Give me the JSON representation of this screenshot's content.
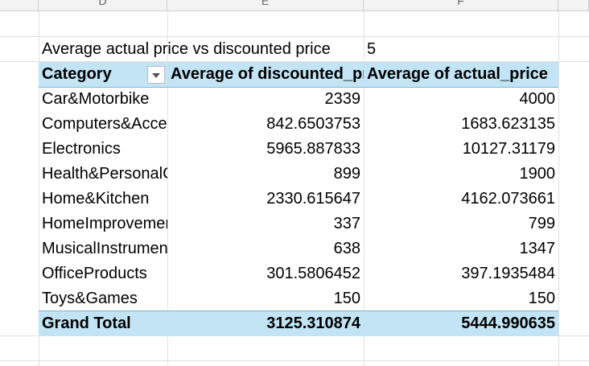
{
  "columns": [
    "D",
    "E",
    "F"
  ],
  "title_cell": {
    "label": "Average actual price vs discounted price",
    "value": "5"
  },
  "pivot": {
    "headers": {
      "category": "Category",
      "discounted": "Average of discounted_price",
      "actual": "Average of actual_price"
    },
    "rows": [
      {
        "category": "Car&Motorbike",
        "discounted": "2339",
        "actual": "4000"
      },
      {
        "category": "Computers&Accessories",
        "discounted": "842.6503753",
        "actual": "1683.623135"
      },
      {
        "category": "Electronics",
        "discounted": "5965.887833",
        "actual": "10127.31179"
      },
      {
        "category": "Health&PersonalCare",
        "discounted": "899",
        "actual": "1900"
      },
      {
        "category": "Home&Kitchen",
        "discounted": "2330.615647",
        "actual": "4162.073661"
      },
      {
        "category": "HomeImprovement",
        "discounted": "337",
        "actual": "799"
      },
      {
        "category": "MusicalInstruments",
        "discounted": "638",
        "actual": "1347"
      },
      {
        "category": "OfficeProducts",
        "discounted": "301.5806452",
        "actual": "397.1935484"
      },
      {
        "category": "Toys&Games",
        "discounted": "150",
        "actual": "150"
      }
    ],
    "grand_total": {
      "label": "Grand Total",
      "discounted": "3125.310874",
      "actual": "5444.990635"
    }
  },
  "colors": {
    "header_band": "#c3e4f4",
    "band_border": "#7fb8d8",
    "gridline": "#e1e1e1"
  }
}
